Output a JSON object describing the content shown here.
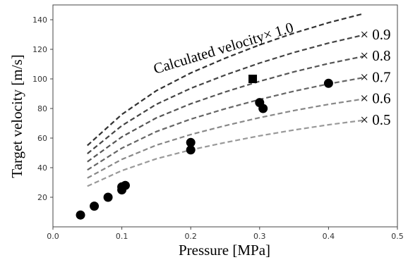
{
  "chart_data": {
    "type": "scatter",
    "xlabel": "Pressure [MPa]",
    "ylabel": "Target velocity [m/s]",
    "xlim": [
      0.0,
      0.5
    ],
    "ylim": [
      0,
      150
    ],
    "xticks": [
      "0.0",
      "0.1",
      "0.2",
      "0.3",
      "0.4",
      "0.5"
    ],
    "yticks": [
      "20",
      "40",
      "60",
      "80",
      "100",
      "120",
      "140"
    ],
    "grid": false,
    "curve_x": [
      0.05,
      0.1,
      0.15,
      0.2,
      0.25,
      0.3,
      0.35,
      0.4,
      0.45
    ],
    "curve_base": [
      55,
      76,
      92,
      104,
      114,
      123,
      131,
      138,
      144
    ],
    "curves": [
      {
        "label": "Calculated velocity× 1.0",
        "factor": 1.0,
        "color": "#333333"
      },
      {
        "label": "× 0.9",
        "factor": 0.9,
        "color": "#444444"
      },
      {
        "label": "× 0.8",
        "factor": 0.8,
        "color": "#555555"
      },
      {
        "label": "× 0.7",
        "factor": 0.7,
        "color": "#666666"
      },
      {
        "label": "× 0.6",
        "factor": 0.6,
        "color": "#888888"
      },
      {
        "label": "× 0.5",
        "factor": 0.5,
        "color": "#999999"
      }
    ],
    "series": [
      {
        "marker": "circle",
        "points": [
          [
            0.04,
            8
          ],
          [
            0.06,
            14
          ],
          [
            0.08,
            20
          ],
          [
            0.1,
            25
          ],
          [
            0.1,
            27
          ],
          [
            0.105,
            28
          ],
          [
            0.2,
            52
          ],
          [
            0.2,
            57
          ],
          [
            0.3,
            84
          ],
          [
            0.305,
            80
          ],
          [
            0.4,
            97
          ]
        ]
      },
      {
        "marker": "square",
        "points": [
          [
            0.29,
            100
          ]
        ]
      }
    ]
  }
}
